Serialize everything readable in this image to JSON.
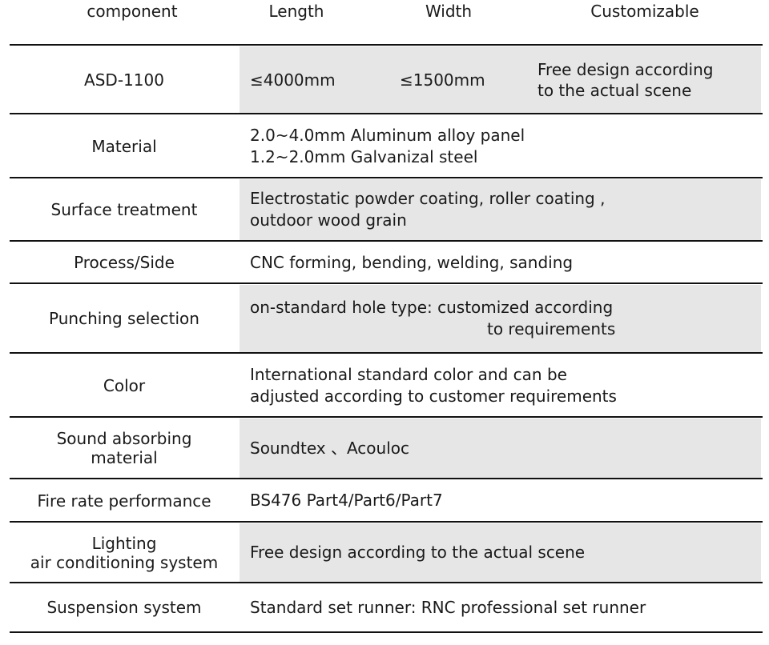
{
  "header": {
    "component": "component",
    "length": "Length",
    "width": "Width",
    "customizable": "Customizable"
  },
  "asd": {
    "label": "ASD-1100",
    "length": "≤4000mm",
    "width": "≤1500mm",
    "custom_line1": "Free design according",
    "custom_line2": "to the actual scene"
  },
  "rows": [
    {
      "label": "Material",
      "lines": [
        "2.0~4.0mm Aluminum alloy panel",
        "1.2~2.0mm Galvanizal steel"
      ]
    },
    {
      "label": "Surface treatment",
      "lines": [
        "Electrostatic powder coating, roller coating ,",
        "outdoor wood grain"
      ]
    },
    {
      "label": "Process/Side",
      "lines": [
        "CNC forming, bending, welding, sanding"
      ]
    },
    {
      "label": "Punching selection",
      "lines": [
        "on-standard hole type: customized according",
        "to requirements"
      ]
    },
    {
      "label": "Color",
      "lines": [
        "International standard color and can be",
        "adjusted according to customer requirements"
      ]
    },
    {
      "label_line1": "Sound absorbing",
      "label_line2": "material",
      "lines": [
        "Soundtex 、Acouloc"
      ]
    },
    {
      "label": "Fire rate performance",
      "lines": [
        "BS476 Part4/Part6/Part7"
      ]
    },
    {
      "label_line1": "Lighting",
      "label_line2": "air conditioning system",
      "lines": [
        "Free design according to the actual scene"
      ]
    },
    {
      "label": "Suspension system",
      "lines": [
        "Standard set runner: RNC professional set runner"
      ]
    }
  ],
  "colors": {
    "shade": "#e6e6e6",
    "rule": "#111111"
  }
}
